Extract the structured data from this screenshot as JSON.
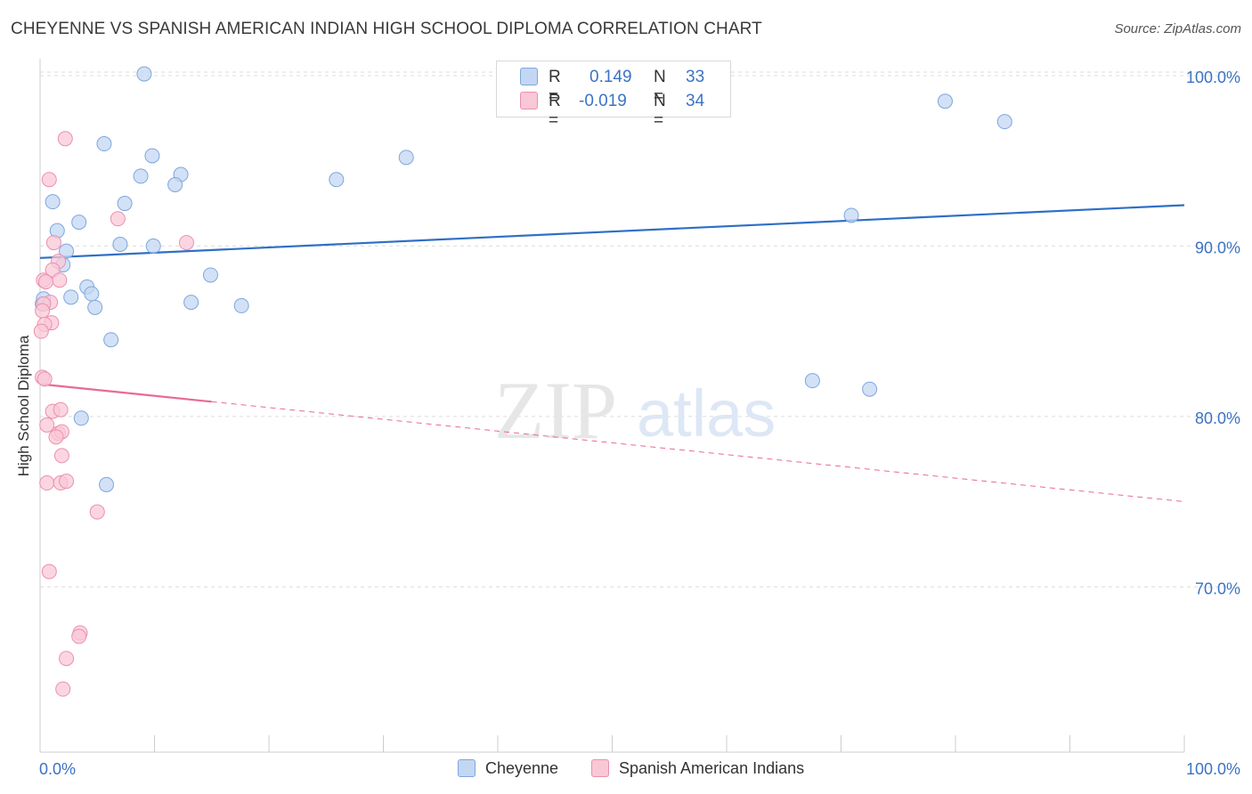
{
  "title": "CHEYENNE VS SPANISH AMERICAN INDIAN HIGH SCHOOL DIPLOMA CORRELATION CHART",
  "source": "Source: ZipAtlas.com",
  "watermark": {
    "zip": "ZIP",
    "atlas": "atlas"
  },
  "colors": {
    "blue_fill": "#c3d7f3",
    "blue_stroke": "#7ea6dd",
    "blue_line": "#2f6fc6",
    "pink_fill": "#f9c8d7",
    "pink_stroke": "#ec8fae",
    "pink_line": "#e86a93",
    "axis_label": "#3b73c4",
    "grid": "#dcdcdc"
  },
  "legend": {
    "rows": [
      {
        "r_label": "R =",
        "r_value": "0.149",
        "n_label": "N =",
        "n_value": "33"
      },
      {
        "r_label": "R =",
        "r_value": "-0.019",
        "n_label": "N =",
        "n_value": "34"
      }
    ]
  },
  "bottom_legend": {
    "series1": "Cheyenne",
    "series2": "Spanish American Indians"
  },
  "chart_data": {
    "type": "scatter",
    "title": "CHEYENNE VS SPANISH AMERICAN INDIAN HIGH SCHOOL DIPLOMA CORRELATION CHART",
    "xlabel": "",
    "ylabel": "High School Diploma",
    "xlim": [
      0,
      100
    ],
    "ylim": [
      60.3,
      101.2
    ],
    "x_tick_labels": [
      "0.0%",
      "100.0%"
    ],
    "y_ticks": [
      70,
      80,
      90,
      100
    ],
    "y_tick_labels": [
      "70.0%",
      "80.0%",
      "90.0%",
      "100.0%"
    ],
    "grid": true,
    "legend_position": "top-center",
    "series": [
      {
        "name": "Cheyenne",
        "r": 0.149,
        "n": 33,
        "trend": {
          "x": [
            0,
            100
          ],
          "y": [
            89.3,
            92.4
          ],
          "dashed_from": null
        },
        "points": [
          [
            9.1,
            100.1
          ],
          [
            5.6,
            96.0
          ],
          [
            9.8,
            95.3
          ],
          [
            8.8,
            94.1
          ],
          [
            12.3,
            94.2
          ],
          [
            11.8,
            93.6
          ],
          [
            25.9,
            93.9
          ],
          [
            32.0,
            95.2
          ],
          [
            79.1,
            98.5
          ],
          [
            84.3,
            97.3
          ],
          [
            70.9,
            91.8
          ],
          [
            1.1,
            92.6
          ],
          [
            7.4,
            92.5
          ],
          [
            3.4,
            91.4
          ],
          [
            1.5,
            90.9
          ],
          [
            7.0,
            90.1
          ],
          [
            9.9,
            90.0
          ],
          [
            2.3,
            89.7
          ],
          [
            2.0,
            88.9
          ],
          [
            14.9,
            88.3
          ],
          [
            4.1,
            87.6
          ],
          [
            4.5,
            87.2
          ],
          [
            2.7,
            87.0
          ],
          [
            0.2,
            86.6
          ],
          [
            13.2,
            86.7
          ],
          [
            17.6,
            86.5
          ],
          [
            4.8,
            86.4
          ],
          [
            6.2,
            84.5
          ],
          [
            67.5,
            82.1
          ],
          [
            72.5,
            81.6
          ],
          [
            3.6,
            79.9
          ],
          [
            5.8,
            76.0
          ],
          [
            0.3,
            86.9
          ]
        ]
      },
      {
        "name": "Spanish American Indians",
        "r": -0.019,
        "n": 34,
        "trend": {
          "x": [
            0,
            100
          ],
          "y": [
            81.9,
            75.0
          ],
          "dashed_from": 15
        },
        "points": [
          [
            2.2,
            96.3
          ],
          [
            0.8,
            93.9
          ],
          [
            6.8,
            91.6
          ],
          [
            1.2,
            90.2
          ],
          [
            12.8,
            90.2
          ],
          [
            1.6,
            89.1
          ],
          [
            1.1,
            88.6
          ],
          [
            0.3,
            88.0
          ],
          [
            1.7,
            88.0
          ],
          [
            0.5,
            87.9
          ],
          [
            0.9,
            86.7
          ],
          [
            0.3,
            86.6
          ],
          [
            0.2,
            86.2
          ],
          [
            1.0,
            85.5
          ],
          [
            0.4,
            85.4
          ],
          [
            0.1,
            85.0
          ],
          [
            0.2,
            82.3
          ],
          [
            0.4,
            82.2
          ],
          [
            1.1,
            80.3
          ],
          [
            1.8,
            80.4
          ],
          [
            0.6,
            79.5
          ],
          [
            1.6,
            79.0
          ],
          [
            1.9,
            79.1
          ],
          [
            1.4,
            78.8
          ],
          [
            1.9,
            77.7
          ],
          [
            0.6,
            76.1
          ],
          [
            1.8,
            76.1
          ],
          [
            2.3,
            76.2
          ],
          [
            5.0,
            74.4
          ],
          [
            0.8,
            70.9
          ],
          [
            3.5,
            67.3
          ],
          [
            3.4,
            67.1
          ],
          [
            2.3,
            65.8
          ],
          [
            2.0,
            64.0
          ]
        ]
      }
    ]
  }
}
